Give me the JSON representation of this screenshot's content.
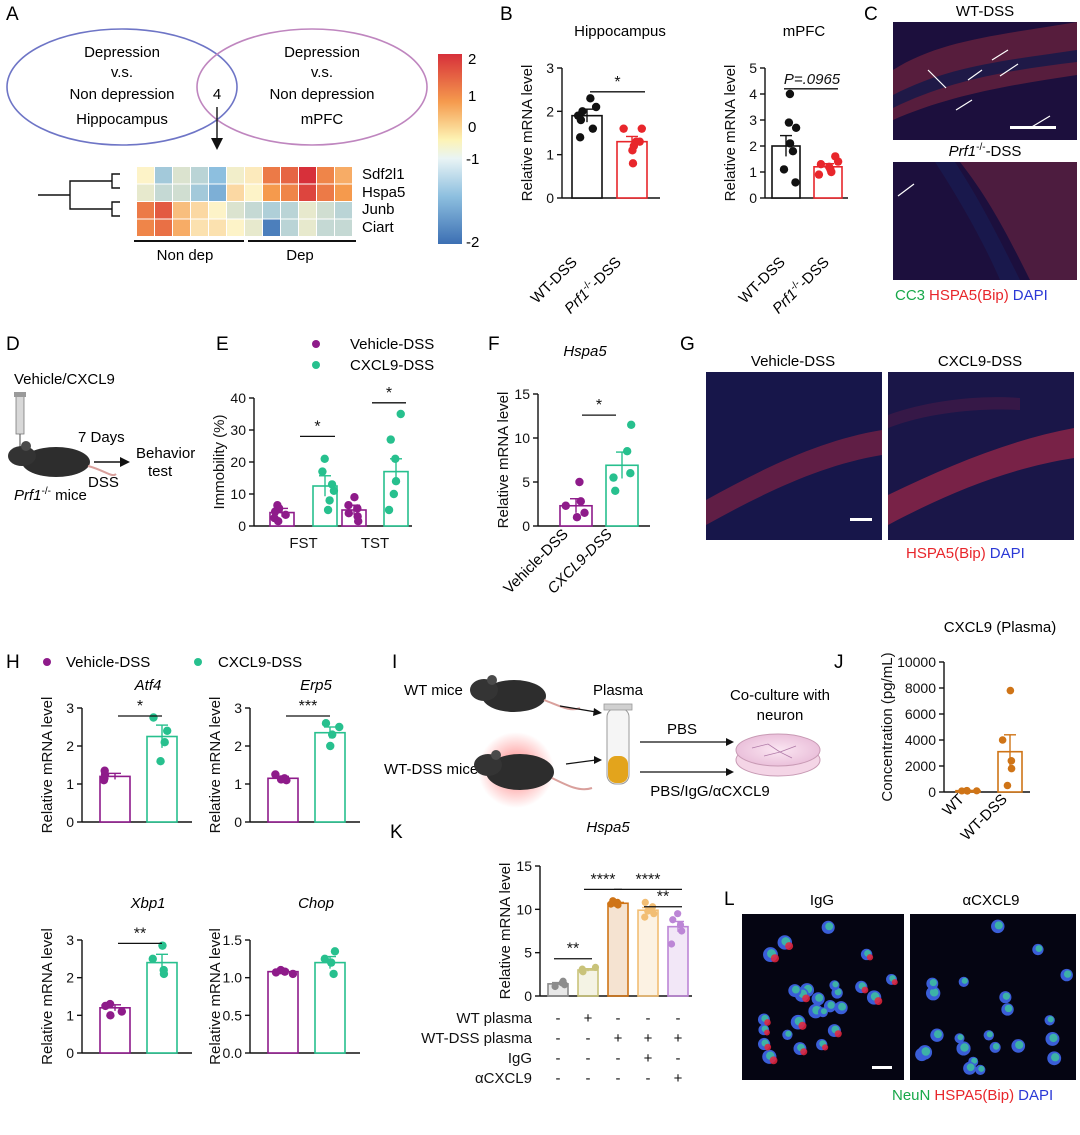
{
  "panels": [
    "A",
    "B",
    "C",
    "D",
    "E",
    "F",
    "G",
    "H",
    "I",
    "J",
    "K",
    "L"
  ],
  "colors": {
    "wt": "#111111",
    "ko": "#e8262b",
    "vehicle": "#8e1b8a",
    "cxcl9": "#27c08e",
    "j": "#cf7417",
    "red": "#e8262b",
    "green": "#18a84a",
    "blue": "#2b39d6"
  },
  "A": {
    "left_venn": [
      "Depression",
      "v.s.",
      "Non depression",
      "Hippocampus"
    ],
    "right_venn": [
      "Depression",
      "v.s.",
      "Non depression",
      "mPFC"
    ],
    "overlap": "4",
    "genes": [
      "Sdf2l1",
      "Hspa5",
      "Junb",
      "Ciart"
    ],
    "groups": [
      "Non dep",
      "Dep"
    ],
    "colorbar_ticks": [
      "2",
      "1",
      "0",
      "-1",
      "-2"
    ],
    "heatmap": [
      [
        0.0,
        -0.8,
        -0.3,
        -0.6,
        -1.0,
        -0.1,
        0.1,
        1.3,
        1.5,
        2.0,
        1.2,
        0.8
      ],
      [
        -0.2,
        -0.5,
        -0.4,
        -0.8,
        -1.2,
        0.3,
        0.0,
        1.0,
        1.2,
        1.8,
        1.3,
        1.0
      ],
      [
        1.3,
        1.6,
        0.6,
        0.3,
        0.0,
        -0.3,
        -0.5,
        -0.7,
        -0.6,
        -0.2,
        -0.4,
        -0.6
      ],
      [
        1.2,
        1.4,
        0.8,
        0.2,
        0.2,
        0.0,
        -0.2,
        -1.8,
        -0.6,
        -0.2,
        -0.5,
        -0.5
      ]
    ]
  },
  "B": {
    "hippo": {
      "title": "Hippocampus",
      "ylabel": "Relative mRNA level",
      "ticks": [
        "0",
        "1",
        "2",
        "3"
      ],
      "ylim": [
        0,
        3
      ],
      "sig": "*",
      "groups": [
        {
          "label": "WT-DSS",
          "mean": 1.9,
          "sem": 0.15,
          "points": [
            2.3,
            2.1,
            2.0,
            1.9,
            1.8,
            1.6,
            1.4
          ]
        },
        {
          "label_pre": "Prf1",
          "label_sup": "-/-",
          "label_post": "-DSS",
          "mean": 1.3,
          "sem": 0.12,
          "points": [
            1.6,
            1.6,
            1.3,
            1.3,
            1.2,
            1.1,
            0.8
          ]
        }
      ]
    },
    "mpfc": {
      "title": "mPFC",
      "ylabel": "Relative mRNA level",
      "ticks": [
        "0",
        "1",
        "2",
        "3",
        "4",
        "5"
      ],
      "ylim": [
        0,
        5
      ],
      "sig": "P=.0965",
      "groups": [
        {
          "label": "WT-DSS",
          "mean": 2.0,
          "sem": 0.4,
          "points": [
            4.0,
            2.9,
            2.7,
            2.1,
            1.8,
            1.1,
            0.6
          ]
        },
        {
          "label_pre": "Prf1",
          "label_sup": "-/-",
          "label_post": "-DSS",
          "mean": 1.2,
          "sem": 0.12,
          "points": [
            1.6,
            1.4,
            1.3,
            1.2,
            1.1,
            1.0,
            0.9
          ]
        }
      ]
    }
  },
  "C": {
    "top": "WT-DSS",
    "bottom_pre": "Prf1",
    "bottom_sup": "-/-",
    "bottom_post": "-DSS",
    "legend": [
      "CC3",
      "HSPA5(Bip)",
      "DAPI"
    ]
  },
  "D": {
    "top": "Vehicle/CXCL9",
    "days": "7 Days",
    "dss": "DSS",
    "behavior1": "Behavior",
    "behavior2": "test",
    "mice_pre": "Prf1",
    "mice_sup": "-/-",
    "mice_post": " mice"
  },
  "E": {
    "ylabel": "Immobility (%)",
    "ticks": [
      "0",
      "10",
      "20",
      "30",
      "40"
    ],
    "ylim": [
      0,
      40
    ],
    "legend": [
      "Vehicle-DSS",
      "CXCL9-DSS"
    ],
    "groups": [
      {
        "label": "FST",
        "sig": "*",
        "vehicle": {
          "mean": 4.2,
          "sem": 1.3,
          "points": [
            6.5,
            5.5,
            4.5,
            3.5,
            2.5,
            1.5
          ]
        },
        "cxcl9": {
          "mean": 12.5,
          "sem": 3.2,
          "points": [
            21,
            17,
            13,
            11,
            8,
            5
          ]
        }
      },
      {
        "label": "TST",
        "sig": "*",
        "vehicle": {
          "mean": 5.0,
          "sem": 1.5,
          "points": [
            9,
            6.5,
            5.5,
            4,
            3,
            1.5
          ]
        },
        "cxcl9": {
          "mean": 17.0,
          "sem": 4.0,
          "points": [
            35,
            27,
            21,
            14,
            10,
            5
          ]
        }
      }
    ]
  },
  "F": {
    "title": "Hspa5",
    "ylabel": "Relative mRNA level",
    "ticks": [
      "0",
      "5",
      "10",
      "15"
    ],
    "ylim": [
      0,
      15
    ],
    "sig": "*",
    "groups": [
      {
        "label": "Vehicle-DSS",
        "mean": 2.3,
        "sem": 0.8,
        "points": [
          5.0,
          2.8,
          2.3,
          1.5,
          1.0
        ]
      },
      {
        "label": "CXCL9-DSS",
        "mean": 6.9,
        "sem": 1.5,
        "points": [
          11.5,
          8.5,
          6.0,
          5.5,
          4.0
        ]
      }
    ]
  },
  "G": {
    "left": "Vehicle-DSS",
    "right": "CXCL9-DSS",
    "legend": [
      "HSPA5(Bip)",
      "DAPI"
    ]
  },
  "H": {
    "legend": [
      "Vehicle-DSS",
      "CXCL9-DSS"
    ],
    "ylabel": "Relative mRNA level",
    "charts": [
      {
        "title": "Atf4",
        "ticks": [
          "0",
          "1",
          "2",
          "3"
        ],
        "ylim": [
          0,
          3
        ],
        "sig": "*",
        "v": {
          "mean": 1.2,
          "sem": 0.08,
          "points": [
            1.35,
            1.25,
            1.15,
            1.1
          ]
        },
        "c": {
          "mean": 2.25,
          "sem": 0.3,
          "points": [
            2.75,
            2.4,
            2.1,
            1.6
          ]
        }
      },
      {
        "title": "Erp5",
        "ticks": [
          "0",
          "1",
          "2",
          "3"
        ],
        "ylim": [
          0,
          3
        ],
        "sig": "***",
        "v": {
          "mean": 1.15,
          "sem": 0.05,
          "points": [
            1.25,
            1.15,
            1.12,
            1.1
          ]
        },
        "c": {
          "mean": 2.35,
          "sem": 0.15,
          "points": [
            2.6,
            2.5,
            2.3,
            2.0
          ]
        }
      },
      {
        "title": "Xbp1",
        "ticks": [
          "0",
          "1",
          "2",
          "3"
        ],
        "ylim": [
          0,
          3
        ],
        "sig": "**",
        "v": {
          "mean": 1.2,
          "sem": 0.08,
          "points": [
            1.3,
            1.25,
            1.1,
            1.0
          ]
        },
        "c": {
          "mean": 2.4,
          "sem": 0.22,
          "points": [
            2.85,
            2.5,
            2.2,
            2.1
          ]
        }
      },
      {
        "title": "Chop",
        "ticks": [
          "0.0",
          "0.5",
          "1.0",
          "1.5"
        ],
        "ylim": [
          0,
          1.5
        ],
        "sig": "",
        "v": {
          "mean": 1.08,
          "sem": 0.02,
          "points": [
            1.1,
            1.08,
            1.07,
            1.05
          ]
        },
        "c": {
          "mean": 1.2,
          "sem": 0.08,
          "points": [
            1.35,
            1.25,
            1.2,
            1.05
          ]
        }
      }
    ]
  },
  "I": {
    "wt": "WT mice",
    "wtdss": "WT-DSS mice",
    "plasma": "Plasma",
    "pbs": "PBS",
    "treat": "PBS/IgG/αCXCL9",
    "coculture1": "Co-culture with",
    "coculture2": "neuron"
  },
  "J": {
    "title": "CXCL9 (Plasma)",
    "ylabel": "Concentration (pg/mL)",
    "ticks": [
      "0",
      "2000",
      "4000",
      "6000",
      "8000",
      "10000"
    ],
    "ylim": [
      0,
      10000
    ],
    "groups": [
      {
        "label": "WT",
        "mean": 100,
        "sem": 20,
        "points": [
          120,
          100,
          90,
          80,
          70
        ]
      },
      {
        "label": "WT-DSS",
        "mean": 3100,
        "sem": 1300,
        "points": [
          7800,
          4000,
          2400,
          1800,
          500
        ]
      }
    ]
  },
  "K": {
    "title": "Hspa5",
    "ylabel": "Relative mRNA level",
    "ticks": [
      "0",
      "5",
      "10",
      "15"
    ],
    "ylim": [
      0,
      15
    ],
    "bars": [
      {
        "mean": 1.4,
        "sem": 0.15,
        "color": "#8c8c8c",
        "points": [
          1.7,
          1.5,
          1.3,
          1.1
        ]
      },
      {
        "mean": 3.0,
        "sem": 0.15,
        "color": "#c9c37a",
        "points": [
          3.3,
          3.1,
          2.9,
          2.8
        ]
      },
      {
        "mean": 10.7,
        "sem": 0.1,
        "color": "#cf7417",
        "points": [
          11.0,
          10.8,
          10.7,
          10.6,
          10.5
        ]
      },
      {
        "mean": 9.9,
        "sem": 0.3,
        "color": "#f2be74",
        "points": [
          10.8,
          10.3,
          9.8,
          9.5,
          9.1
        ]
      },
      {
        "mean": 8.0,
        "sem": 0.6,
        "color": "#bc86d6",
        "points": [
          9.5,
          8.8,
          8.2,
          7.5,
          6.0
        ]
      }
    ],
    "sigs": [
      {
        "from": 0,
        "to": 1,
        "label": "**",
        "y": 4.3
      },
      {
        "from": 1,
        "to": 2,
        "label": "****",
        "y": 12.3
      },
      {
        "from": 2,
        "to": 4,
        "label": "****",
        "y": 12.3
      },
      {
        "from": 3,
        "to": 4,
        "label": "**",
        "y": 10.3
      }
    ],
    "rows": [
      {
        "label": "WT plasma",
        "signs": [
          "-",
          "+",
          "-",
          "-",
          "-"
        ]
      },
      {
        "label": "WT-DSS plasma",
        "signs": [
          "-",
          "-",
          "+",
          "+",
          "+"
        ]
      },
      {
        "label": "IgG",
        "signs": [
          "-",
          "-",
          "-",
          "+",
          "-"
        ]
      },
      {
        "label": "αCXCL9",
        "signs": [
          "-",
          "-",
          "-",
          "-",
          "+"
        ]
      }
    ]
  },
  "L": {
    "left": "IgG",
    "right": "αCXCL9",
    "legend": [
      "NeuN",
      "HSPA5(Bip)",
      "DAPI"
    ]
  }
}
